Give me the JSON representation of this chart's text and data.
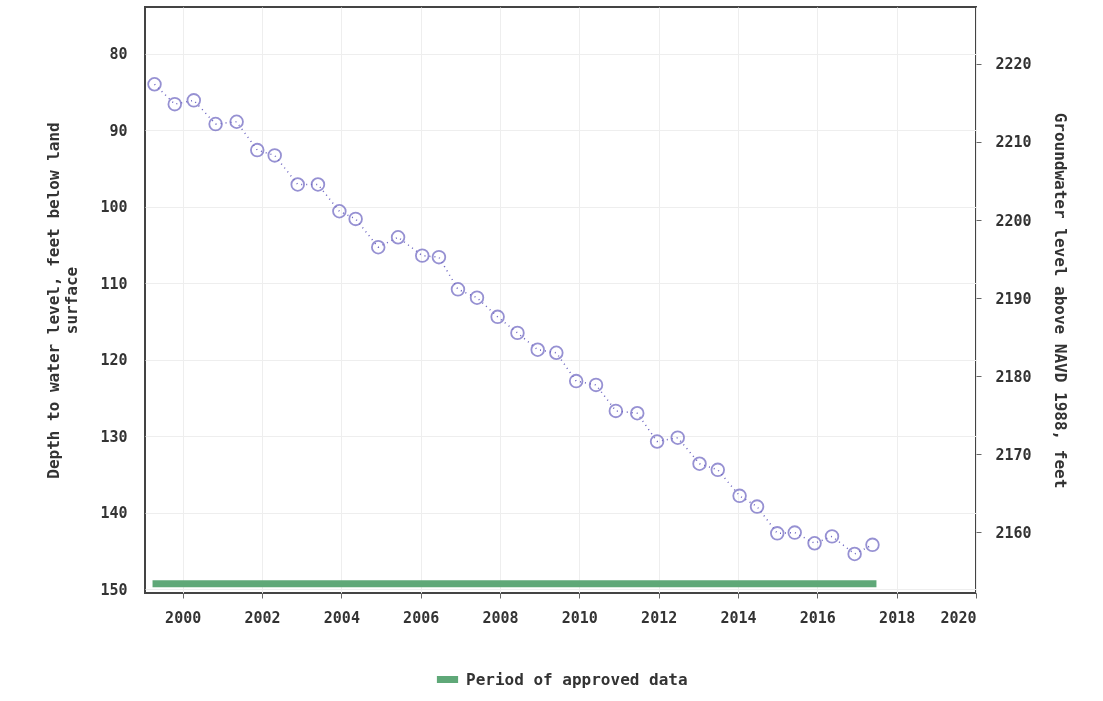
{
  "chart_data": {
    "type": "line",
    "xlabel": null,
    "ylabel": "Depth to water level, feet below land surface",
    "y2label": "Groundwater level above NAVD 1988, feet",
    "xlim": [
      1999.05,
      2020
    ],
    "xticks": [
      2000,
      2002,
      2004,
      2006,
      2008,
      2010,
      2012,
      2014,
      2016,
      2018,
      2020
    ],
    "ylim": [
      150.5,
      73.9
    ],
    "yticks": [
      80,
      90,
      100,
      110,
      120,
      130,
      140,
      150
    ],
    "y2lim": [
      2152.2,
      2227.3
    ],
    "y2ticks": [
      2160,
      2170,
      2180,
      2190,
      2200,
      2210,
      2220
    ],
    "grid": true,
    "legend": "bottom",
    "series": [
      {
        "color": "#6b63c0",
        "marker": "circle",
        "line_style": "dotted",
        "x": [
          1999.29,
          1999.8,
          2000.28,
          2000.83,
          2001.36,
          2001.88,
          2002.32,
          2002.9,
          2003.41,
          2003.95,
          2004.36,
          2004.93,
          2005.43,
          2006.04,
          2006.46,
          2006.94,
          2007.42,
          2007.94,
          2008.44,
          2008.95,
          2009.42,
          2009.92,
          2010.42,
          2010.92,
          2011.46,
          2011.96,
          2012.48,
          2013.03,
          2013.49,
          2014.04,
          2014.48,
          2014.99,
          2015.43,
          2015.93,
          2016.37,
          2016.94,
          2017.39
        ],
        "values": [
          84.0,
          86.6,
          86.1,
          89.2,
          88.9,
          92.6,
          93.3,
          97.1,
          97.1,
          100.6,
          101.6,
          105.3,
          104.0,
          106.4,
          106.6,
          110.8,
          111.9,
          114.4,
          116.5,
          118.7,
          119.1,
          122.8,
          123.3,
          126.7,
          127.0,
          130.7,
          130.2,
          133.6,
          134.4,
          137.8,
          139.2,
          142.7,
          142.6,
          144.0,
          143.1,
          145.4,
          144.2
        ]
      },
      {
        "name": "Period of approved data",
        "color": "#5fa878",
        "marker": "none",
        "line_style": "solid",
        "x": [
          1999.24,
          2017.49
        ],
        "values": [
          149.3,
          149.3
        ]
      }
    ]
  }
}
